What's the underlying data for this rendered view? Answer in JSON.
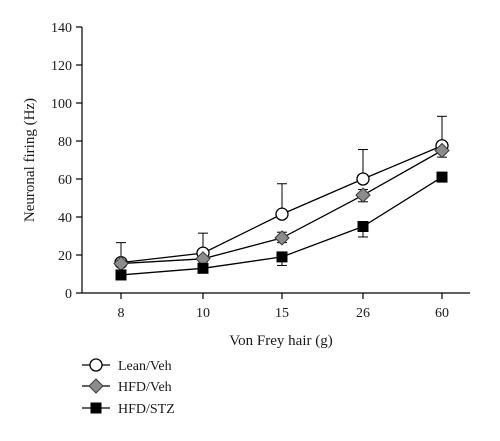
{
  "chart_data": {
    "type": "line",
    "xlabel": "Von Frey hair (g)",
    "ylabel": "Neuronal firing (Hz)",
    "categories": [
      "8",
      "10",
      "15",
      "26",
      "60"
    ],
    "ylim": [
      0,
      140
    ],
    "yticks": [
      0,
      20,
      40,
      60,
      80,
      100,
      120,
      140
    ],
    "grid": false,
    "legend_position": "bottom-left",
    "series": [
      {
        "name": "Lean/Veh",
        "marker": "circle-open",
        "color": "#000000",
        "values": [
          16,
          21,
          41.5,
          60,
          77.5
        ],
        "error_upper": [
          26.5,
          31.5,
          57.5,
          75.5,
          93
        ]
      },
      {
        "name": "HFD/Veh",
        "marker": "diamond-gray",
        "color": "#8c8c8c",
        "values": [
          15.5,
          18,
          29,
          51.5,
          75
        ],
        "error_upper": [
          17.5,
          20,
          32,
          54.5,
          77.5
        ],
        "error_lower": [
          14,
          16.5,
          26.5,
          48,
          71.5
        ]
      },
      {
        "name": "HFD/STZ",
        "marker": "square-filled",
        "color": "#000000",
        "values": [
          9.5,
          13,
          19,
          35,
          61
        ],
        "error_lower": [
          7.5,
          11,
          14.5,
          29.5,
          59
        ]
      }
    ]
  }
}
